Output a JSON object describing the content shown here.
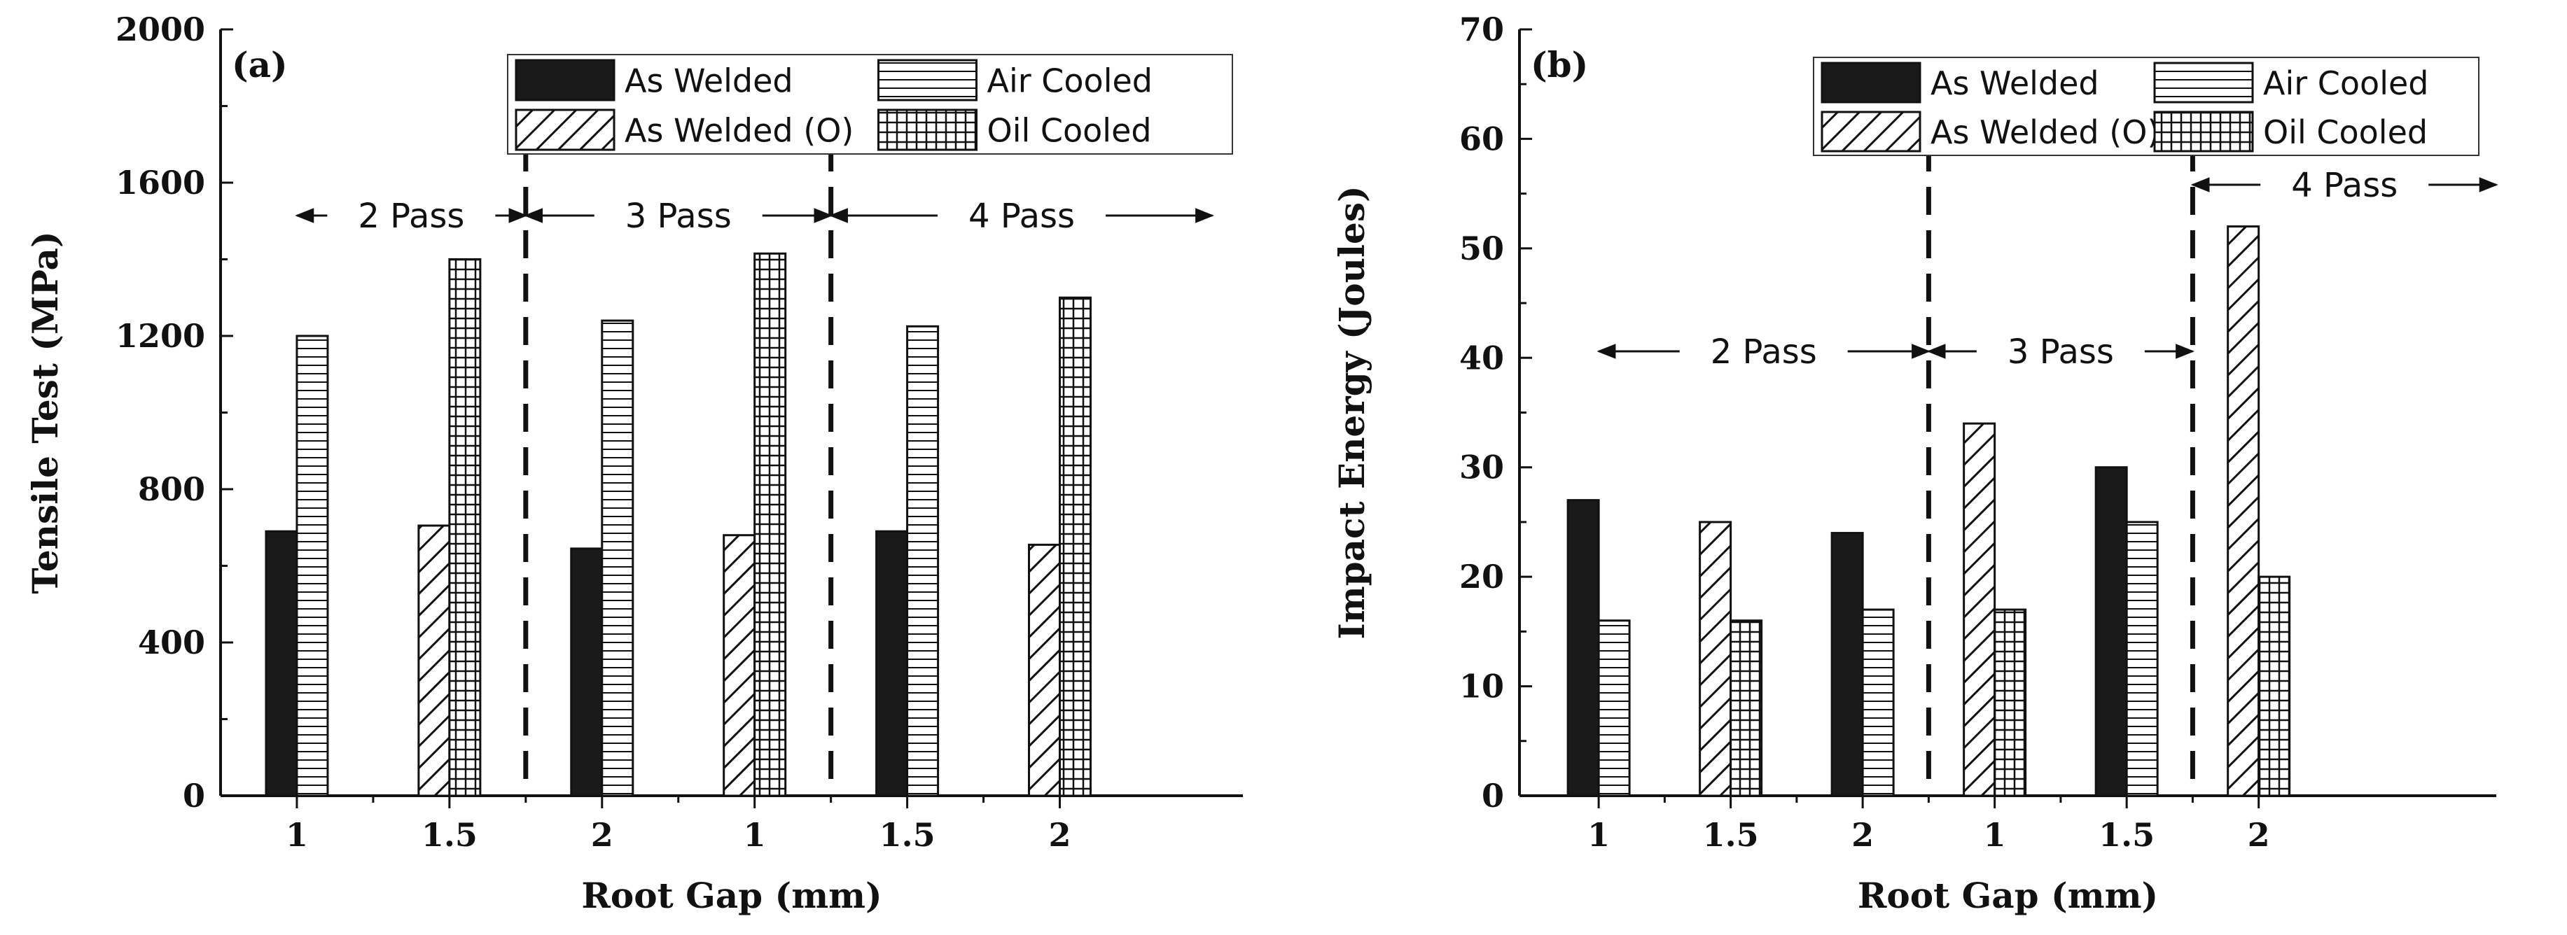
{
  "colors": {
    "bar_edge": "#111111",
    "solid_fill": "#1a1a1a",
    "line": "#111111",
    "background": "#ffffff"
  },
  "chart_data": [
    {
      "type": "bar",
      "panel_label": "(a)",
      "xlabel": "Root Gap (mm)",
      "ylabel": "Tensile Test (MPa)",
      "ylim": [
        0,
        2000
      ],
      "yticks": [
        0,
        400,
        800,
        1200,
        1600,
        2000
      ],
      "categories": [
        "1",
        "1.5",
        "2",
        "1",
        "1.5",
        "2"
      ],
      "series": [
        {
          "name": "As Welded",
          "values": [
            690,
            null,
            645,
            null,
            690,
            null
          ]
        },
        {
          "name": "As Welded (O)",
          "values": [
            null,
            705,
            null,
            680,
            null,
            655
          ]
        },
        {
          "name": "Air Cooled",
          "values": [
            1200,
            null,
            1240,
            null,
            1225,
            null
          ]
        },
        {
          "name": "Oil Cooled",
          "values": [
            null,
            1400,
            null,
            1415,
            null,
            1300
          ]
        }
      ],
      "legend": {
        "placement": "top-right"
      },
      "pass_annotations": [
        {
          "label": "2 Pass",
          "from": 0.0,
          "to": 1.5
        },
        {
          "label": "3 Pass",
          "from": 1.5,
          "to": 3.5
        },
        {
          "label": "4 Pass",
          "from": 3.5,
          "to": 6.0
        }
      ],
      "dividers": [
        1.5,
        3.5
      ]
    },
    {
      "type": "bar",
      "panel_label": "(b)",
      "xlabel": "Root Gap (mm)",
      "ylabel": "Impact Energy (Joules)",
      "ylim": [
        0,
        70
      ],
      "yticks": [
        0,
        10,
        20,
        30,
        40,
        50,
        60,
        70
      ],
      "categories": [
        "1",
        "1.5",
        "2",
        "1",
        "1.5",
        "2"
      ],
      "series": [
        {
          "name": "As Welded",
          "values": [
            27,
            null,
            24,
            null,
            30,
            null
          ]
        },
        {
          "name": "As Welded (O)",
          "values": [
            null,
            25,
            null,
            34,
            null,
            52
          ]
        },
        {
          "name": "Air Cooled",
          "values": [
            16,
            null,
            17,
            null,
            25,
            null
          ]
        },
        {
          "name": "Oil Cooled",
          "values": [
            null,
            16,
            null,
            17,
            null,
            20
          ]
        }
      ],
      "legend": {
        "placement": "top-right"
      },
      "pass_annotations": [
        {
          "label": "2 Pass",
          "from": 0.0,
          "to": 2.5
        },
        {
          "label": "3 Pass",
          "from": 2.5,
          "to": 4.5
        },
        {
          "label": "4 Pass",
          "from": 4.5,
          "to": 6.8
        }
      ],
      "dividers": [
        2.5,
        4.5
      ]
    }
  ]
}
